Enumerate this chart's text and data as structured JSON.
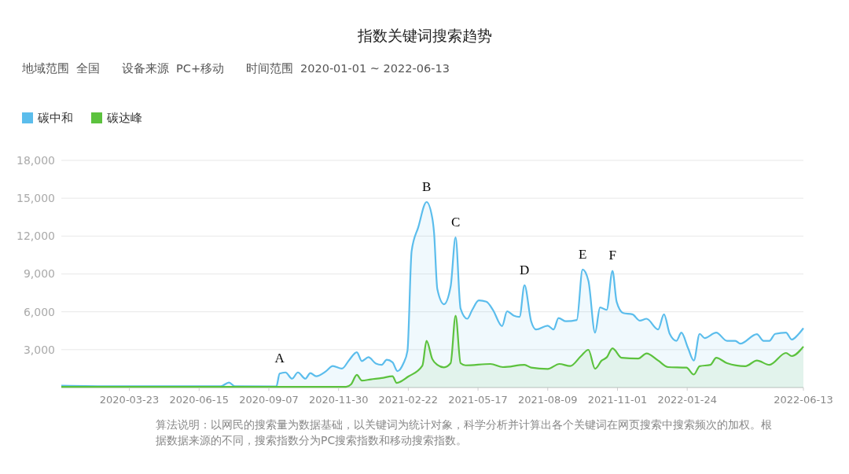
{
  "chart_data": {
    "type": "area",
    "title": "指数关键词搜索趋势",
    "subtitle": "地域范围  全国      设备来源  PC+移动      时间范围  2020-01-01 ~ 2022-06-13",
    "annotations": [
      {
        "text": "A",
        "x": "2020-09-20",
        "y": 1100
      },
      {
        "text": "B",
        "x": "2021-03-16",
        "y": 14700
      },
      {
        "text": "C",
        "x": "2021-04-20",
        "y": 11900
      },
      {
        "text": "D",
        "x": "2021-07-12",
        "y": 8100
      },
      {
        "text": "E",
        "x": "2021-09-20",
        "y": 9350
      },
      {
        "text": "F",
        "x": "2021-10-26",
        "y": 9250
      },
      "算法说明：以网民的搜索量为数据基础，以关键词为统计对象，科学分析并计算出各个关键词在网页搜索中搜索频次的加权。根据数据来源的不同，搜索指数分为PC搜索指数和移动搜索指数。"
    ],
    "series": [
      {
        "name": "碳中和",
        "color": "#5bbdec",
        "x": [
          "2020-01-01",
          "2020-03-04",
          "2020-05-30",
          "2020-07-11",
          "2020-07-21",
          "2020-07-28",
          "2020-09-16",
          "2020-09-20",
          "2020-09-27",
          "2020-10-05",
          "2020-10-12",
          "2020-10-21",
          "2020-10-27",
          "2020-11-03",
          "2020-11-15",
          "2020-11-23",
          "2020-12-04",
          "2020-12-13",
          "2020-12-22",
          "2020-12-28",
          "2021-01-05",
          "2021-01-14",
          "2021-01-21",
          "2021-01-27",
          "2021-02-03",
          "2021-02-09",
          "2021-02-16",
          "2021-02-21",
          "2021-02-26",
          "2021-03-06",
          "2021-03-16",
          "2021-03-23",
          "2021-03-25",
          "2021-03-29",
          "2021-04-06",
          "2021-04-14",
          "2021-04-20",
          "2021-04-26",
          "2021-05-04",
          "2021-05-10",
          "2021-05-18",
          "2021-05-27",
          "2021-06-04",
          "2021-06-15",
          "2021-06-21",
          "2021-06-29",
          "2021-07-06",
          "2021-07-12",
          "2021-07-20",
          "2021-07-26",
          "2021-08-09",
          "2021-08-16",
          "2021-08-22",
          "2021-08-31",
          "2021-09-13",
          "2021-09-20",
          "2021-09-27",
          "2021-10-05",
          "2021-10-11",
          "2021-10-19",
          "2021-10-26",
          "2021-10-31",
          "2021-11-08",
          "2021-11-19",
          "2021-11-28",
          "2021-12-06",
          "2021-12-20",
          "2021-12-27",
          "2022-01-03",
          "2022-01-11",
          "2022-01-17",
          "2022-01-25",
          "2022-02-01",
          "2022-02-08",
          "2022-02-14",
          "2022-02-28",
          "2022-03-13",
          "2022-03-23",
          "2022-03-29",
          "2022-04-18",
          "2022-04-26",
          "2022-05-03",
          "2022-05-10",
          "2022-05-23",
          "2022-05-30",
          "2022-06-06",
          "2022-06-13"
        ],
        "values": [
          150,
          100,
          100,
          100,
          400,
          100,
          80,
          1100,
          1200,
          700,
          1200,
          700,
          1150,
          900,
          1300,
          1700,
          1500,
          2200,
          2800,
          2100,
          2400,
          1900,
          1800,
          2200,
          2000,
          1300,
          1900,
          2900,
          10800,
          12700,
          14700,
          13400,
          12300,
          7800,
          6600,
          8000,
          11900,
          6250,
          5450,
          6150,
          6900,
          6800,
          6150,
          4870,
          6040,
          5700,
          5600,
          8100,
          5250,
          4600,
          4900,
          4600,
          5500,
          5250,
          5350,
          9350,
          8450,
          4350,
          6350,
          6150,
          9250,
          6800,
          5900,
          5800,
          5300,
          5450,
          4600,
          5800,
          4250,
          3700,
          4350,
          3130,
          2140,
          4250,
          3920,
          4350,
          3700,
          3700,
          3480,
          4230,
          3700,
          3700,
          4250,
          4350,
          3800,
          4150,
          4700
        ]
      },
      {
        "name": "碳达峰",
        "color": "#5cc23e",
        "x": [
          "2020-01-01",
          "2020-12-09",
          "2020-12-15",
          "2020-12-22",
          "2020-12-28",
          "2021-01-08",
          "2021-01-21",
          "2021-02-03",
          "2021-02-08",
          "2021-02-22",
          "2021-03-11",
          "2021-03-16",
          "2021-03-23",
          "2021-03-29",
          "2021-04-06",
          "2021-04-14",
          "2021-04-20",
          "2021-04-26",
          "2021-05-02",
          "2021-06-01",
          "2021-06-16",
          "2021-07-12",
          "2021-07-20",
          "2021-08-09",
          "2021-08-23",
          "2021-09-05",
          "2021-09-18",
          "2021-09-27",
          "2021-10-05",
          "2021-10-13",
          "2021-10-19",
          "2021-10-26",
          "2021-11-06",
          "2021-11-26",
          "2021-12-06",
          "2021-12-20",
          "2022-01-01",
          "2022-01-23",
          "2022-02-01",
          "2022-02-08",
          "2022-02-21",
          "2022-02-28",
          "2022-03-13",
          "2022-04-04",
          "2022-04-18",
          "2022-05-03",
          "2022-05-23",
          "2022-05-30",
          "2022-06-13"
        ],
        "values": [
          50,
          60,
          250,
          1000,
          550,
          650,
          750,
          900,
          370,
          870,
          1740,
          3700,
          2250,
          1800,
          1600,
          1930,
          5700,
          1930,
          1760,
          1870,
          1620,
          1800,
          1580,
          1470,
          1870,
          1700,
          2490,
          2990,
          1490,
          2140,
          2390,
          3110,
          2360,
          2300,
          2700,
          2140,
          1620,
          1580,
          1030,
          1690,
          1800,
          2360,
          1930,
          1690,
          2140,
          1800,
          2740,
          2490,
          3250
        ]
      }
    ],
    "xlim": [
      "2020-01-01",
      "2022-06-13"
    ],
    "xticks": [
      {
        "value": "2020-03-23",
        "label": "2020-03-23"
      },
      {
        "value": "2020-06-15",
        "label": "2020-06-15"
      },
      {
        "value": "2020-09-07",
        "label": "2020-09-07"
      },
      {
        "value": "2020-11-30",
        "label": "2020-11-30"
      },
      {
        "value": "2021-02-22",
        "label": "2021-02-22"
      },
      {
        "value": "2021-05-17",
        "label": "2021-05-17"
      },
      {
        "value": "2021-08-09",
        "label": "2021-08-09"
      },
      {
        "value": "2021-11-01",
        "label": "2021-11-01"
      },
      {
        "value": "2022-01-24",
        "label": "2022-01-24"
      },
      {
        "value": "2022-06-13",
        "label": "2022-06-13"
      }
    ],
    "ylim": [
      0,
      18000
    ],
    "yticks": [
      {
        "value": 0,
        "label": null
      },
      {
        "value": 3000,
        "label": "3,000"
      },
      {
        "value": 6000,
        "label": "6,000"
      },
      {
        "value": 9000,
        "label": "9,000"
      },
      {
        "value": 12000,
        "label": "12,000"
      },
      {
        "value": 15000,
        "label": "15,000"
      },
      {
        "value": 18000,
        "label": "18,000"
      }
    ],
    "grid": "y",
    "legend": "top left",
    "marker": "none",
    "line_style": "solid"
  }
}
